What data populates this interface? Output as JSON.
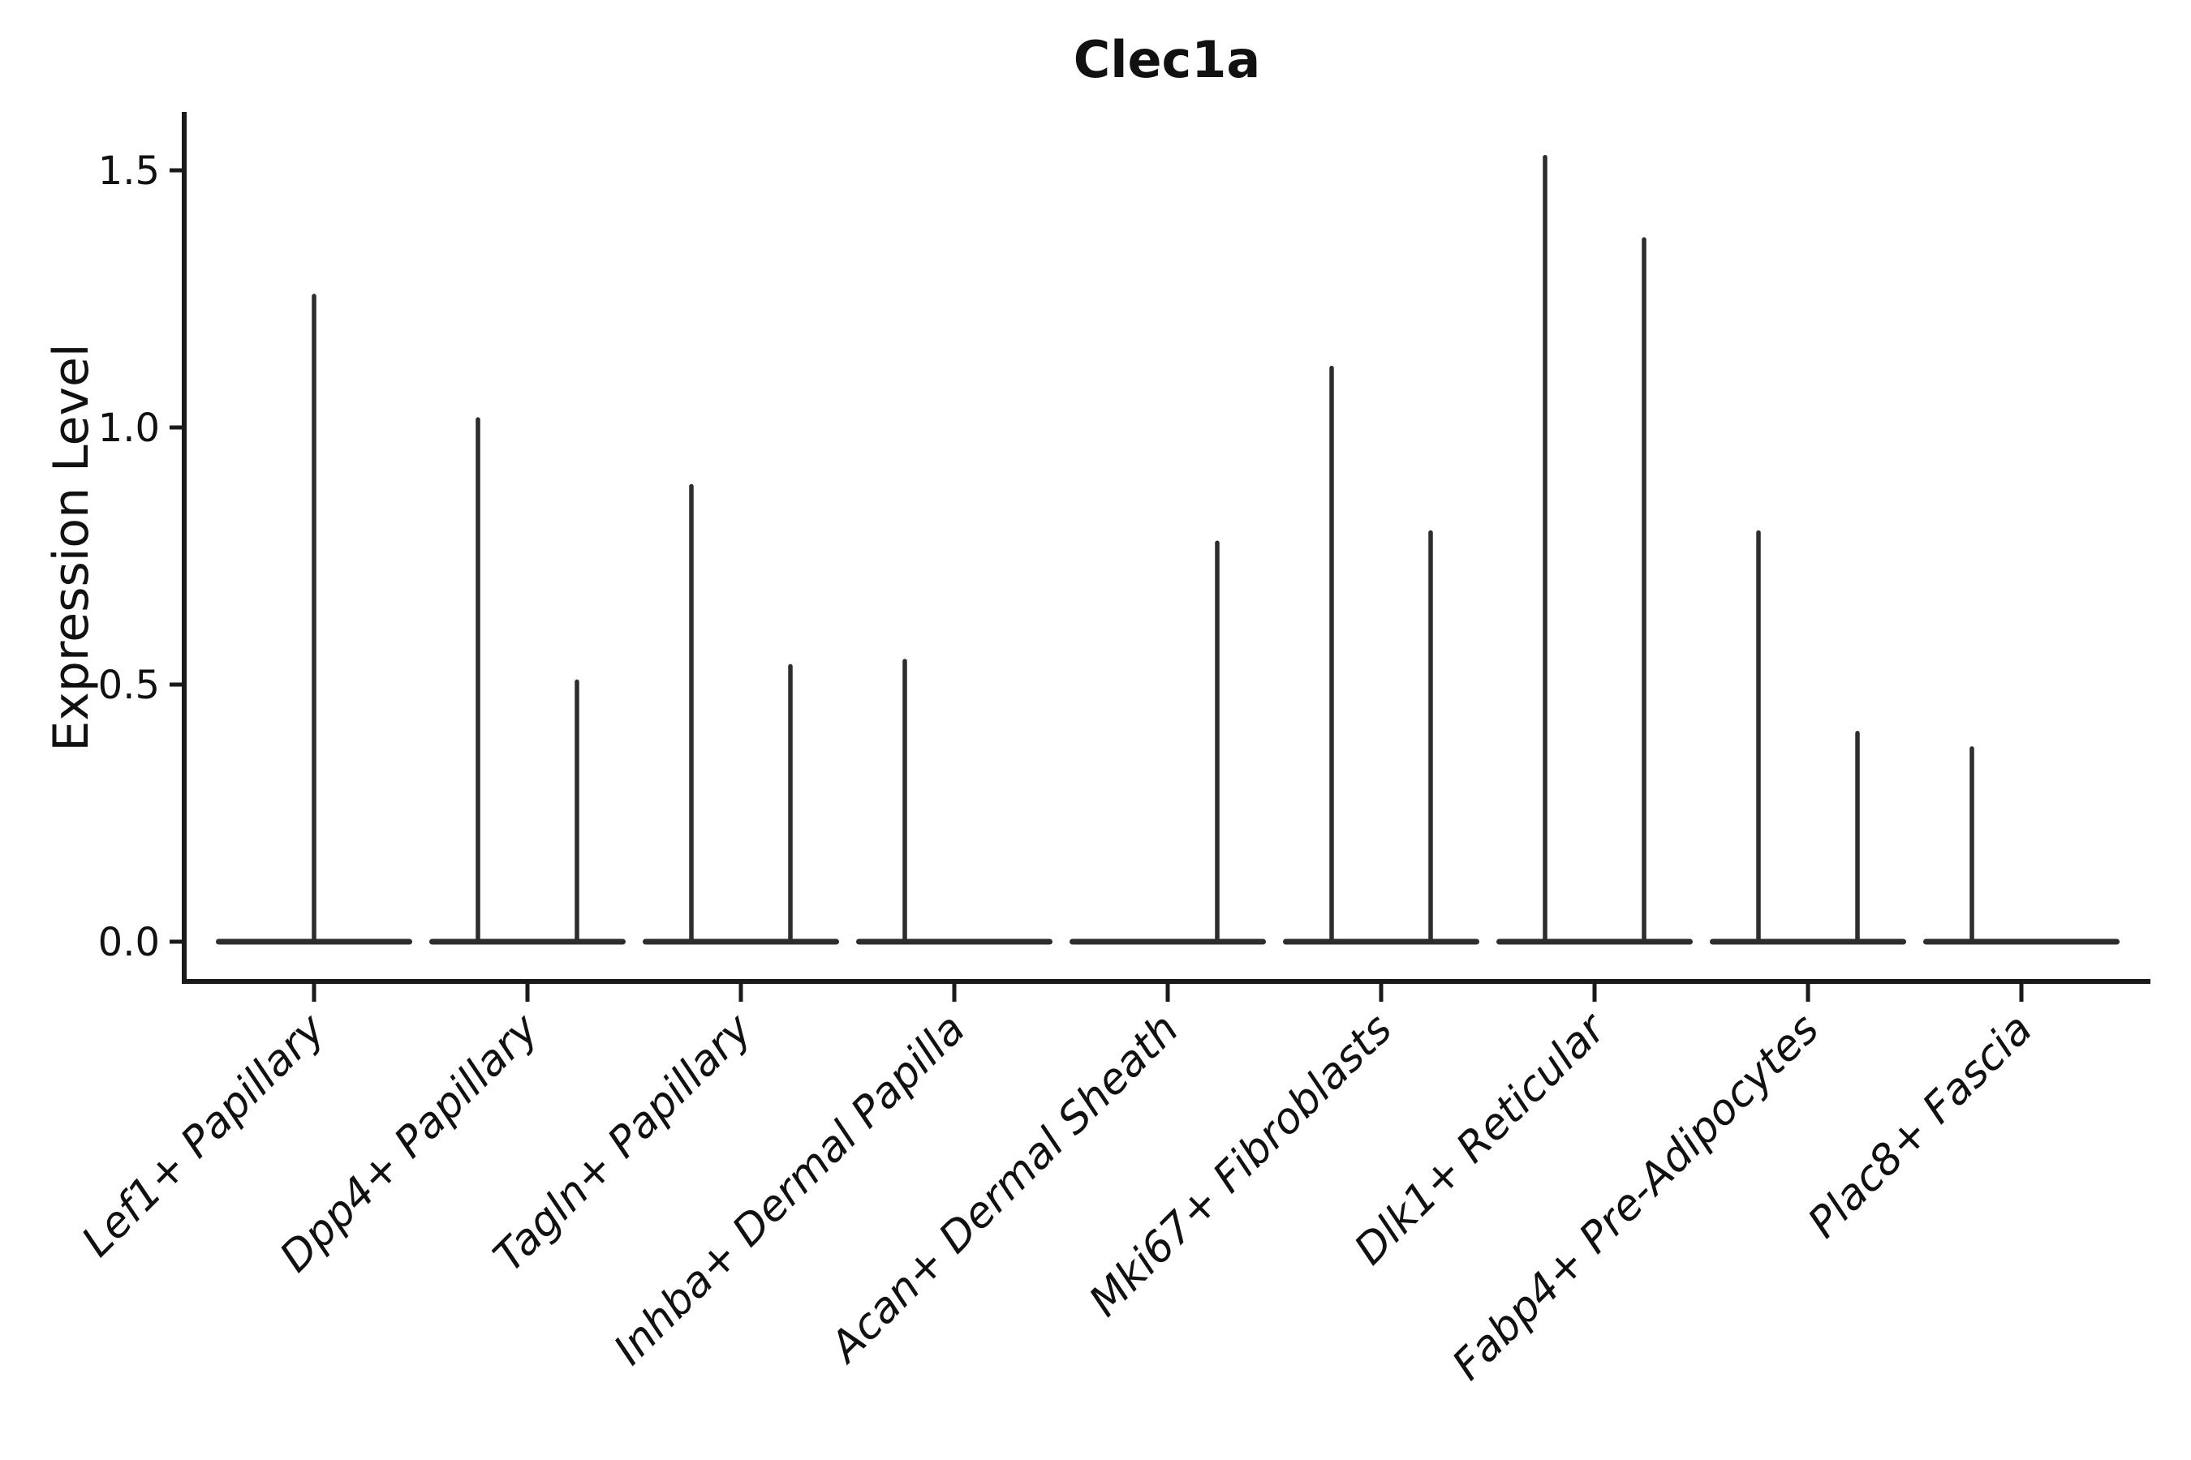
{
  "chart_data": {
    "type": "violin",
    "title": "Clec1a",
    "ylabel": "Expression Level",
    "xlabel": "",
    "grid": false,
    "legend_position": "none",
    "y_ticks": [
      0.0,
      0.5,
      1.0,
      1.5
    ],
    "ylim": [
      0,
      1.61
    ],
    "categories": [
      "Lef1+ Papillary",
      "Dpp4+ Papillary",
      "Tagln+ Papillary",
      "Inhba+ Dermal Papilla",
      "Acan+ Dermal Sheath",
      "Mki67+ Fibroblasts",
      "Dlk1+ Reticular",
      "Fabp4+ Pre-Adipocytes",
      "Plac8+ Fascia"
    ],
    "violins": [
      {
        "category": "Lef1+ Papillary",
        "spikes": [
          {
            "position": "center",
            "max": 1.26
          }
        ]
      },
      {
        "category": "Dpp4+ Papillary",
        "spikes": [
          {
            "position": "left",
            "max": 1.02
          },
          {
            "position": "right",
            "max": 0.51
          }
        ]
      },
      {
        "category": "Tagln+ Papillary",
        "spikes": [
          {
            "position": "left",
            "max": 0.89
          },
          {
            "position": "right",
            "max": 0.54
          }
        ]
      },
      {
        "category": "Inhba+ Dermal Papilla",
        "spikes": [
          {
            "position": "left",
            "max": 0.55
          }
        ]
      },
      {
        "category": "Acan+ Dermal Sheath",
        "spikes": [
          {
            "position": "right",
            "max": 0.78
          }
        ]
      },
      {
        "category": "Mki67+ Fibroblasts",
        "spikes": [
          {
            "position": "left",
            "max": 1.12
          },
          {
            "position": "right",
            "max": 0.8
          }
        ]
      },
      {
        "category": "Dlk1+ Reticular",
        "spikes": [
          {
            "position": "left",
            "max": 1.53
          },
          {
            "position": "right",
            "max": 1.37
          }
        ]
      },
      {
        "category": "Fabp4+ Pre-Adipocytes",
        "spikes": [
          {
            "position": "left",
            "max": 0.8
          },
          {
            "position": "right",
            "max": 0.41
          }
        ]
      },
      {
        "category": "Plac8+ Fascia",
        "spikes": [
          {
            "position": "left",
            "max": 0.38
          }
        ]
      }
    ],
    "style": {
      "background": "#ffffff",
      "ink_color": "#111111",
      "violin_color": "#2d2d2d",
      "axis_color": "#1a1a1a"
    }
  }
}
